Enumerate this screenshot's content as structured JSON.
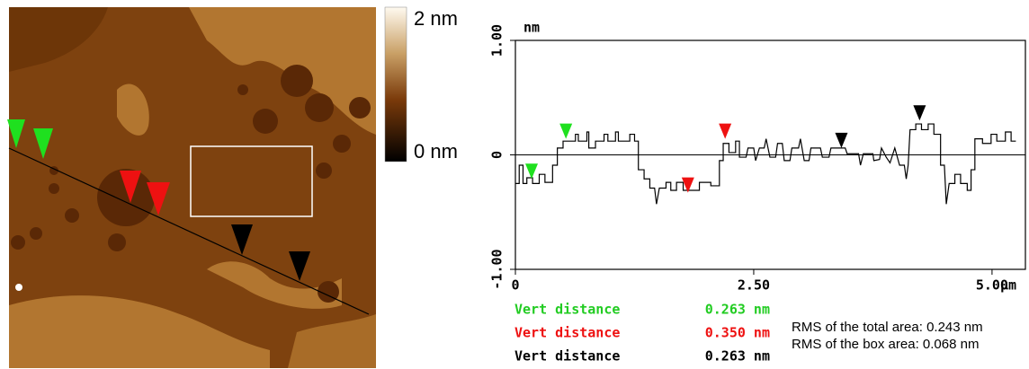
{
  "image": {
    "colorbar": {
      "max_label": "2 nm",
      "min_label": "0 nm"
    }
  },
  "chart_data": {
    "type": "line",
    "x_label": "μm",
    "y_label": "nm",
    "xlim": [
      0,
      5.35
    ],
    "ylim": [
      -1,
      1
    ],
    "xticks": [
      0,
      {
        "value": 2.5,
        "label": "2.50"
      },
      {
        "value": 5,
        "label": "5.00"
      }
    ],
    "yticks": [
      {
        "value": -1,
        "label": "-1.00"
      },
      0,
      {
        "value": 1,
        "label": "1.00"
      }
    ],
    "zero_line": true,
    "series": [
      {
        "color": "#000000",
        "x": [
          0,
          0.04,
          0.04,
          0.08,
          0.08,
          0.12,
          0.12,
          0.18,
          0.18,
          0.25,
          0.25,
          0.31,
          0.31,
          0.39,
          0.39,
          0.44,
          0.44,
          0.5,
          0.5,
          0.63,
          0.63,
          0.66,
          0.66,
          0.75,
          0.75,
          0.77,
          0.77,
          0.84,
          0.84,
          0.93,
          0.93,
          0.97,
          0.97,
          1.05,
          1.05,
          1.08,
          1.08,
          1.2,
          1.2,
          1.25,
          1.25,
          1.29,
          1.29,
          1.35,
          1.35,
          1.41,
          1.41,
          1.46,
          1.48,
          1.51,
          1.58,
          1.58,
          1.63,
          1.63,
          1.69,
          1.69,
          1.76,
          1.76,
          1.93,
          1.93,
          2.05,
          2.05,
          2.14,
          2.14,
          2.18,
          2.18,
          2.24,
          2.24,
          2.31,
          2.31,
          2.35,
          2.35,
          2.42,
          2.44,
          2.5,
          2.52,
          2.56,
          2.61,
          2.63,
          2.67,
          2.73,
          2.75,
          2.8,
          2.82,
          2.88,
          2.9,
          2.97,
          2.99,
          3.03,
          3.08,
          3.1,
          3.2,
          3.22,
          3.29,
          3.31,
          3.46,
          3.48,
          3.6,
          3.62,
          3.65,
          3.75,
          3.76,
          3.82,
          3.84,
          3.89,
          3.93,
          3.98,
          4.03,
          4.08,
          4.1,
          4.12,
          4.14,
          4.2,
          4.2,
          4.26,
          4.26,
          4.33,
          4.33,
          4.39,
          4.39,
          4.46,
          4.46,
          4.5,
          4.52,
          4.55,
          4.61,
          4.61,
          4.67,
          4.67,
          4.74,
          4.74,
          4.78,
          4.78,
          4.82,
          4.82,
          4.9,
          4.9,
          4.99,
          4.99,
          5.05,
          5.05,
          5.14,
          5.14,
          5.2,
          5.2,
          5.25
        ],
        "values": [
          -0.25,
          -0.25,
          -0.09,
          -0.09,
          -0.25,
          -0.25,
          -0.2,
          -0.2,
          -0.25,
          -0.25,
          -0.17,
          -0.17,
          -0.24,
          -0.24,
          -0.09,
          -0.09,
          0.06,
          0.06,
          0.12,
          0.12,
          0.18,
          0.18,
          0.12,
          0.12,
          0.2,
          0.2,
          0.06,
          0.06,
          0.12,
          0.12,
          0.18,
          0.18,
          0.12,
          0.12,
          0.2,
          0.2,
          0.12,
          0.12,
          0.18,
          0.18,
          0.12,
          0.12,
          -0.13,
          -0.13,
          -0.21,
          -0.21,
          -0.29,
          -0.29,
          -0.43,
          -0.29,
          -0.29,
          -0.24,
          -0.24,
          -0.31,
          -0.31,
          -0.24,
          -0.24,
          -0.31,
          -0.31,
          -0.24,
          -0.24,
          -0.27,
          -0.27,
          -0.05,
          -0.05,
          0.1,
          0.1,
          0.02,
          0.02,
          0.12,
          0.12,
          -0.02,
          -0.02,
          0.06,
          0.06,
          -0.05,
          0.06,
          0.06,
          0.14,
          -0.02,
          -0.02,
          0.1,
          0.1,
          -0.05,
          -0.05,
          0.06,
          0.06,
          0.14,
          -0.05,
          -0.05,
          0.06,
          0.06,
          -0.02,
          -0.02,
          0.06,
          0.06,
          0.01,
          0.01,
          -0.09,
          0.01,
          0.01,
          -0.05,
          -0.04,
          0.06,
          -0.02,
          -0.07,
          0.06,
          -0.09,
          -0.09,
          -0.21,
          -0.09,
          0.22,
          0.22,
          0.27,
          0.27,
          0.22,
          0.22,
          0.27,
          0.27,
          0.18,
          0.18,
          -0.09,
          -0.09,
          -0.43,
          -0.25,
          -0.25,
          -0.17,
          -0.17,
          -0.25,
          -0.25,
          -0.31,
          -0.31,
          -0.13,
          -0.13,
          0.14,
          0.14,
          0.1,
          0.1,
          0.18,
          0.18,
          0.12,
          0.12,
          0.2,
          0.2,
          0.12,
          0.12
        ]
      }
    ],
    "cursors": [
      {
        "color": "#1fe01f",
        "x": 0.17,
        "y": -0.21
      },
      {
        "color": "#1fe01f",
        "x": 0.53,
        "y": 0.14
      },
      {
        "color": "#ee1111",
        "x": 1.81,
        "y": -0.33
      },
      {
        "color": "#ee1111",
        "x": 2.2,
        "y": 0.14
      },
      {
        "color": "#000000",
        "x": 3.42,
        "y": 0.06
      },
      {
        "color": "#000000",
        "x": 4.24,
        "y": 0.3
      }
    ]
  },
  "measurements": [
    {
      "label": "Vert distance",
      "value": "0.263 nm",
      "color": "#22cc22"
    },
    {
      "label": "Vert distance",
      "value": "0.350 nm",
      "color": "#ee1111"
    },
    {
      "label": "Vert distance",
      "value": "0.263 nm",
      "color": "#000000"
    }
  ],
  "rms": [
    "RMS of the total area: 0.243 nm",
    "RMS of the box area: 0.068 nm"
  ]
}
